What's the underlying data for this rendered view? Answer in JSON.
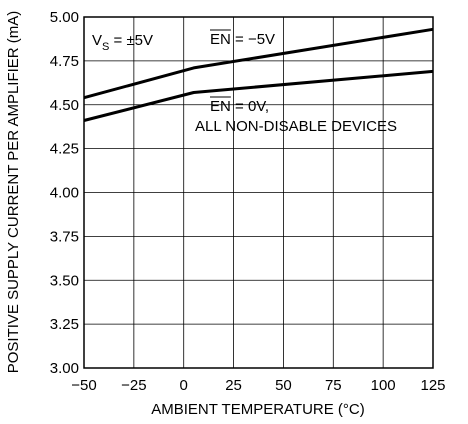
{
  "chart_data": {
    "type": "line",
    "xlabel": "AMBIENT TEMPERATURE (°C)",
    "ylabel": "POSITIVE SUPPLY CURRENT PER AMPLIFIER (mA)",
    "xlim": [
      -50,
      125
    ],
    "ylim": [
      3.0,
      5.0
    ],
    "x_ticks": [
      "−50",
      "−25",
      "0",
      "25",
      "50",
      "75",
      "100",
      "125"
    ],
    "y_ticks": [
      "3.00",
      "3.25",
      "3.50",
      "3.75",
      "4.00",
      "4.25",
      "4.50",
      "4.75",
      "5.00"
    ],
    "grid": true,
    "legend": "none",
    "series": [
      {
        "name": "EN = −5V",
        "x": [
          -50,
          5,
          125
        ],
        "y": [
          4.54,
          4.71,
          4.93
        ]
      },
      {
        "name": "EN = 0V, ALL NON-DISABLE DEVICES",
        "x": [
          -50,
          5,
          125
        ],
        "y": [
          4.41,
          4.57,
          4.69
        ]
      }
    ],
    "annotations": {
      "vs_prefix": "V",
      "vs_sub": "S",
      "vs_rest": " = ±5V",
      "en_bar": "EN",
      "en_neg_rest": " = −5V",
      "en_zero_rest": " = 0V,",
      "en_zero_line2": "ALL NON-DISABLE DEVICES"
    }
  },
  "colors": {
    "line": "#000000",
    "grid": "#000000",
    "background": "#ffffff"
  }
}
